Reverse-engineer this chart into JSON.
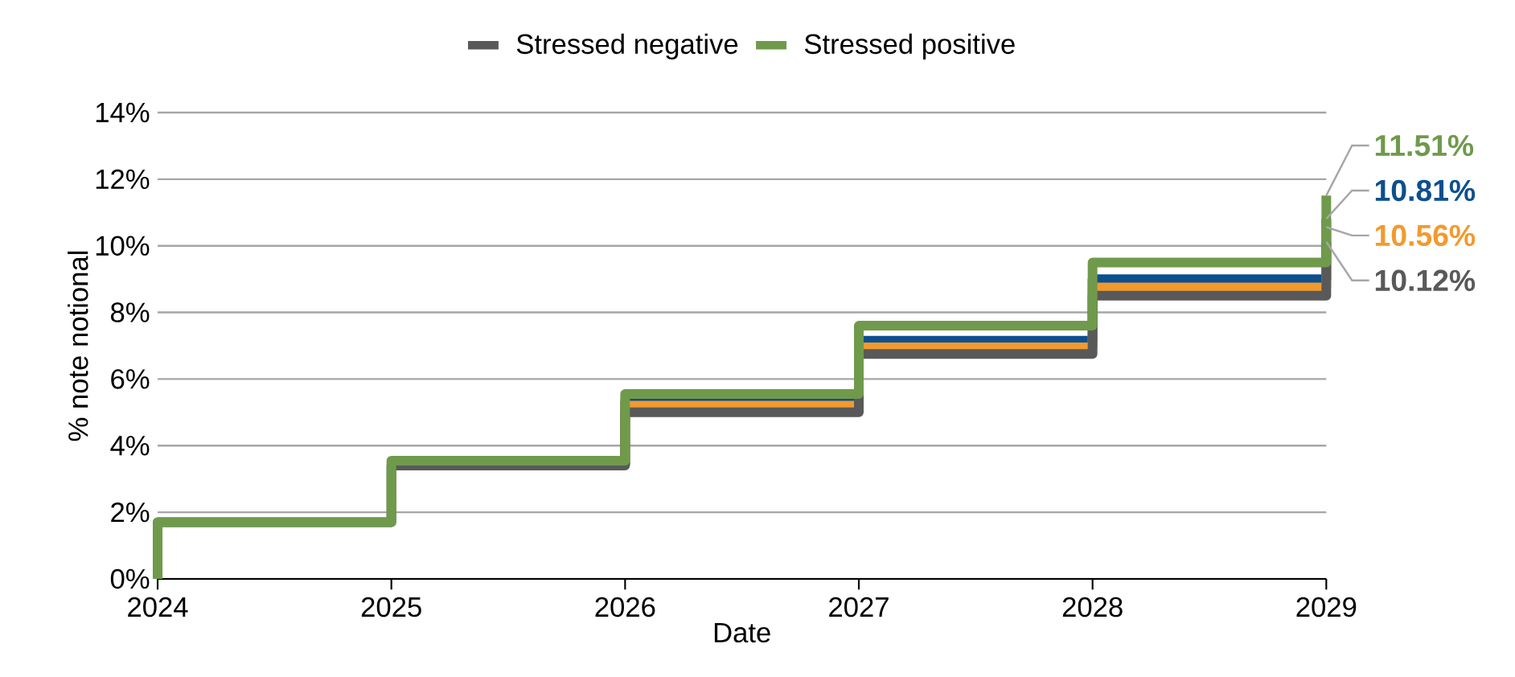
{
  "chart_data": {
    "type": "step",
    "xlabel": "Date",
    "ylabel": "% note notional",
    "x": [
      2024,
      2024,
      2025,
      2026,
      2027,
      2028,
      2029
    ],
    "series": [
      {
        "color": "#0d4f8f",
        "values": [
          null,
          null,
          3.45,
          5.3,
          7.15,
          9.0,
          10.81
        ],
        "value_labels": [
          null,
          null,
          null,
          null,
          null,
          null,
          "10.81%"
        ]
      },
      {
        "color": "#f29a2e",
        "values": [
          null,
          null,
          3.45,
          5.2,
          6.95,
          8.75,
          10.56
        ],
        "value_labels": [
          null,
          null,
          null,
          null,
          null,
          null,
          "10.56%"
        ]
      },
      {
        "name": "Stressed negative",
        "color": "#595959",
        "values": [
          0,
          1.7,
          3.4,
          5.0,
          6.75,
          8.5,
          10.12
        ],
        "value_labels": [
          null,
          null,
          null,
          null,
          null,
          null,
          "10.12%"
        ]
      },
      {
        "name": "Stressed positive",
        "color": "#6f9a4b",
        "values": [
          0,
          1.7,
          3.55,
          5.55,
          7.6,
          9.5,
          11.51
        ],
        "value_labels": [
          null,
          null,
          null,
          null,
          null,
          null,
          "11.51%"
        ]
      }
    ],
    "xlim": [
      2024,
      2029
    ],
    "xticks": [
      2024,
      2025,
      2026,
      2027,
      2028,
      2029
    ],
    "ylim": [
      0,
      14
    ],
    "yticks": [
      {
        "value": 0,
        "label": "0%"
      },
      {
        "value": 2,
        "label": "2%"
      },
      {
        "value": 4,
        "label": "4%"
      },
      {
        "value": 6,
        "label": "6%"
      },
      {
        "value": 8,
        "label": "8%"
      },
      {
        "value": 10,
        "label": "10%"
      },
      {
        "value": 12,
        "label": "12%"
      },
      {
        "value": 14,
        "label": "14%"
      }
    ],
    "grid": "y",
    "legend": "top",
    "line_style": "solid",
    "marker": "none"
  }
}
